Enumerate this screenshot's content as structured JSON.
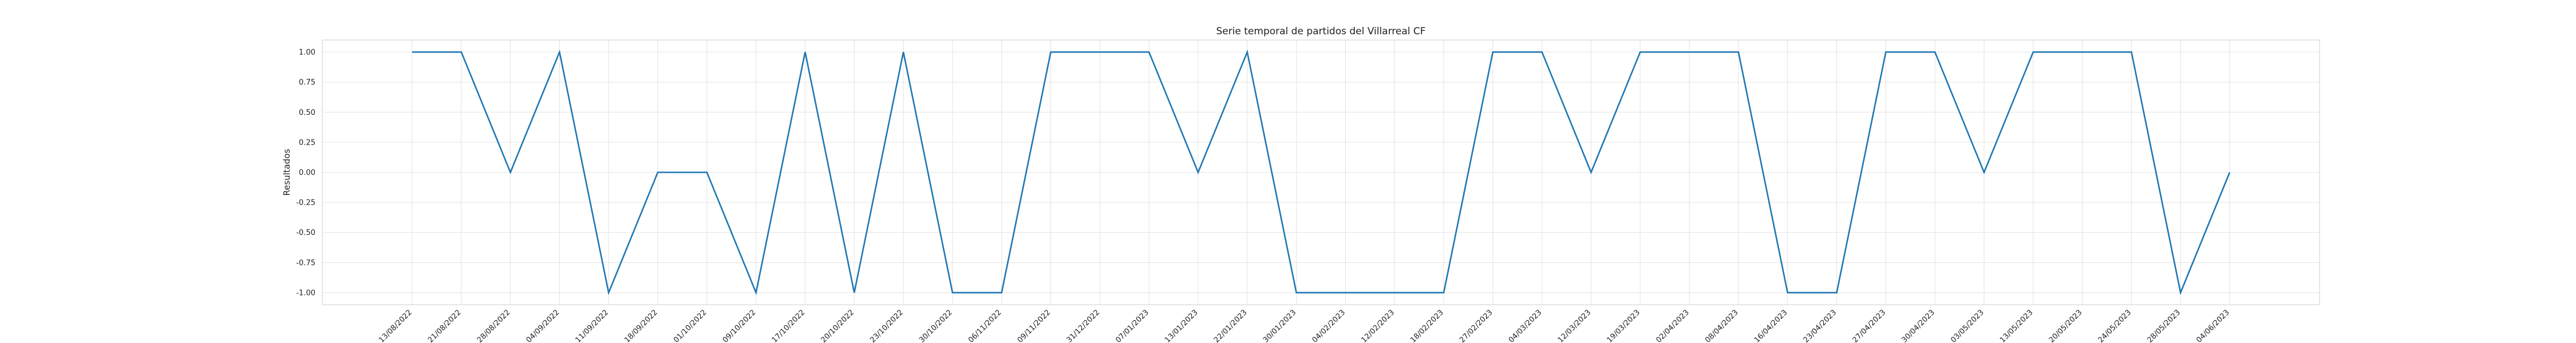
{
  "chart_data": {
    "type": "line",
    "title": "Serie temporal de partidos del Villarreal CF",
    "xlabel": "",
    "ylabel": "Resultados",
    "ylim": [
      -1.1,
      1.1
    ],
    "yticks": [
      "-1.00",
      "-0.75",
      "-0.50",
      "-0.25",
      "0.00",
      "0.25",
      "0.50",
      "0.75",
      "1.00"
    ],
    "ytick_values": [
      -1.0,
      -0.75,
      -0.5,
      -0.25,
      0.0,
      0.25,
      0.5,
      0.75,
      1.0
    ],
    "grid": true,
    "line_color": "#1f77b4",
    "categories": [
      "13/08/2022",
      "21/08/2022",
      "28/08/2022",
      "04/09/2022",
      "11/09/2022",
      "18/09/2022",
      "01/10/2022",
      "09/10/2022",
      "17/10/2022",
      "20/10/2022",
      "23/10/2022",
      "30/10/2022",
      "06/11/2022",
      "09/11/2022",
      "31/12/2022",
      "07/01/2023",
      "13/01/2023",
      "22/01/2023",
      "30/01/2023",
      "04/02/2023",
      "12/02/2023",
      "18/02/2023",
      "27/02/2023",
      "04/03/2023",
      "12/03/2023",
      "19/03/2023",
      "02/04/2023",
      "08/04/2023",
      "16/04/2023",
      "23/04/2023",
      "27/04/2023",
      "30/04/2023",
      "03/05/2023",
      "13/05/2023",
      "20/05/2023",
      "24/05/2023",
      "28/05/2023",
      "04/06/2023"
    ],
    "values": [
      1,
      1,
      0,
      1,
      -1,
      0,
      0,
      -1,
      1,
      -1,
      1,
      -1,
      -1,
      1,
      1,
      1,
      0,
      1,
      -1,
      -1,
      -1,
      -1,
      1,
      1,
      0,
      1,
      1,
      1,
      -1,
      -1,
      1,
      1,
      0,
      1,
      1,
      1,
      -1,
      0
    ]
  }
}
